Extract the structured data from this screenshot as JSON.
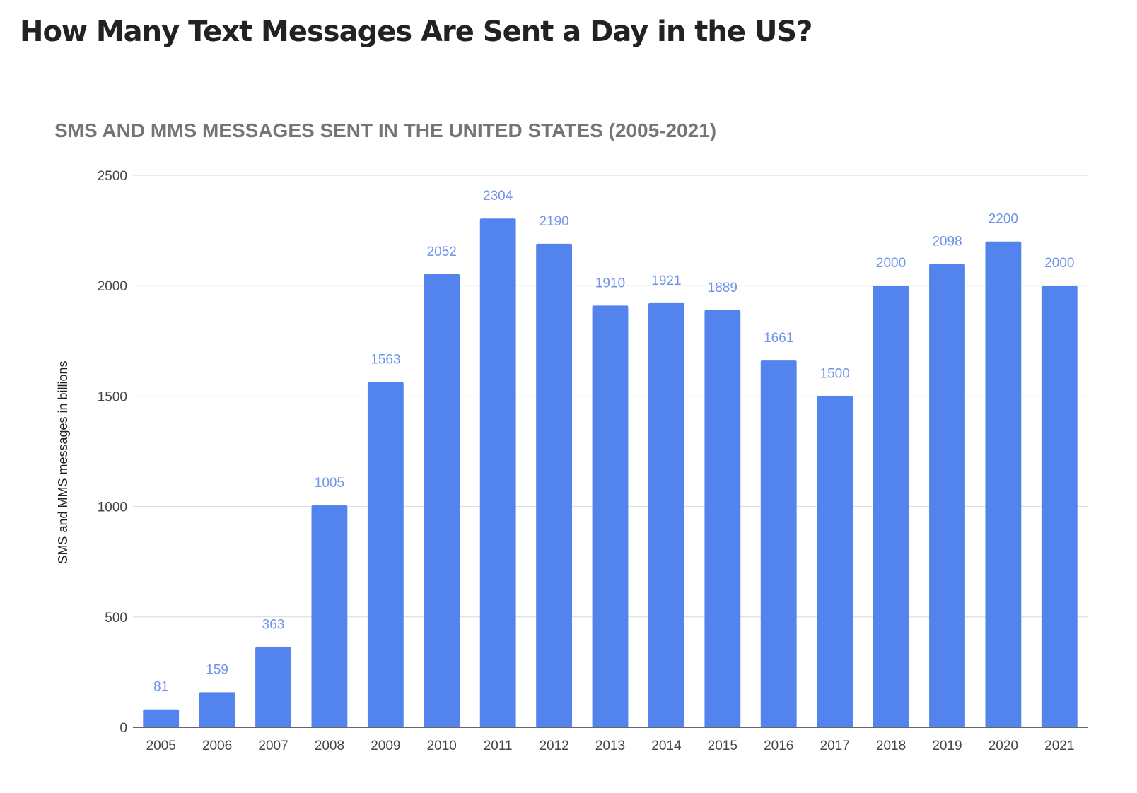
{
  "page": {
    "heading": "How Many Text Messages Are Sent a Day in the US?"
  },
  "colors": {
    "bar": "#5383EC",
    "data_label": "#6F94E8"
  },
  "chart_data": {
    "type": "bar",
    "title": "SMS AND MMS MESSAGES SENT IN THE UNITED STATES (2005-2021)",
    "xlabel": "",
    "ylabel": "SMS and MMS messages in billions",
    "ylim": [
      0,
      2500
    ],
    "yticks": [
      0,
      500,
      1000,
      1500,
      2000,
      2500
    ],
    "grid": true,
    "legend": "none",
    "categories": [
      "2005",
      "2006",
      "2007",
      "2008",
      "2009",
      "2010",
      "2011",
      "2012",
      "2013",
      "2014",
      "2015",
      "2016",
      "2017",
      "2018",
      "2019",
      "2020",
      "2021"
    ],
    "series": [
      {
        "name": "SMS and MMS messages in billions",
        "values": [
          81,
          159,
          363,
          1005,
          1563,
          2052,
          2304,
          2190,
          1910,
          1921,
          1889,
          1661,
          1500,
          2000,
          2098,
          2200,
          2000
        ]
      }
    ]
  }
}
